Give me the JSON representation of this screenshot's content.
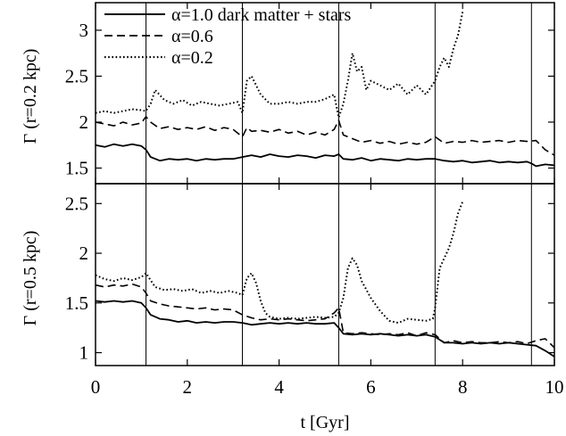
{
  "chart_data": [
    {
      "type": "line",
      "panel": "top",
      "ylabel": "Γ (r=0.2 kpc)",
      "xlim": [
        0,
        10
      ],
      "ylim": [
        1.33,
        3.3
      ],
      "yticks": [
        1.5,
        2,
        2.5,
        3
      ],
      "ytick_labels": [
        "1.5",
        "2",
        "2.5",
        "3"
      ],
      "vlines": [
        1.1,
        3.2,
        5.3,
        7.4,
        9.5
      ],
      "legend": {
        "placement": "top-left"
      },
      "series": [
        {
          "name": "α=1.0  dark matter + stars",
          "style": "solid",
          "x": [
            0,
            0.2,
            0.4,
            0.6,
            0.8,
            1.0,
            1.1,
            1.2,
            1.4,
            1.6,
            1.8,
            2.0,
            2.2,
            2.4,
            2.6,
            2.8,
            3.0,
            3.2,
            3.4,
            3.6,
            3.8,
            4.0,
            4.2,
            4.4,
            4.6,
            4.8,
            5.0,
            5.2,
            5.3,
            5.4,
            5.6,
            5.8,
            6.0,
            6.2,
            6.4,
            6.6,
            6.8,
            7.0,
            7.2,
            7.4,
            7.6,
            7.8,
            8.0,
            8.2,
            8.4,
            8.6,
            8.8,
            9.0,
            9.2,
            9.4,
            9.5,
            9.6,
            9.8,
            10.0
          ],
          "y": [
            1.75,
            1.73,
            1.76,
            1.74,
            1.76,
            1.74,
            1.7,
            1.62,
            1.58,
            1.6,
            1.59,
            1.6,
            1.58,
            1.6,
            1.59,
            1.6,
            1.6,
            1.62,
            1.64,
            1.62,
            1.65,
            1.63,
            1.62,
            1.64,
            1.63,
            1.61,
            1.64,
            1.63,
            1.65,
            1.6,
            1.59,
            1.61,
            1.58,
            1.6,
            1.59,
            1.58,
            1.6,
            1.59,
            1.6,
            1.6,
            1.58,
            1.57,
            1.58,
            1.56,
            1.57,
            1.58,
            1.56,
            1.57,
            1.56,
            1.57,
            1.55,
            1.52,
            1.54,
            1.53
          ]
        },
        {
          "name": "α=0.6",
          "style": "dashed",
          "x": [
            0,
            0.2,
            0.4,
            0.6,
            0.8,
            1.0,
            1.1,
            1.2,
            1.4,
            1.6,
            1.8,
            2.0,
            2.2,
            2.4,
            2.6,
            2.8,
            3.0,
            3.2,
            3.3,
            3.4,
            3.6,
            3.8,
            4.0,
            4.2,
            4.4,
            4.6,
            4.8,
            5.0,
            5.2,
            5.3,
            5.4,
            5.6,
            5.8,
            6.0,
            6.2,
            6.4,
            6.6,
            6.8,
            7.0,
            7.2,
            7.4,
            7.6,
            7.8,
            8.0,
            8.2,
            8.4,
            8.6,
            8.8,
            9.0,
            9.2,
            9.4,
            9.6,
            9.8,
            10.0
          ],
          "y": [
            2.0,
            1.98,
            1.96,
            2.0,
            1.97,
            1.99,
            2.06,
            2.0,
            1.93,
            1.95,
            1.92,
            1.94,
            1.92,
            1.95,
            1.91,
            1.94,
            1.92,
            1.84,
            1.94,
            1.9,
            1.91,
            1.89,
            1.92,
            1.88,
            1.9,
            1.86,
            1.89,
            1.86,
            1.92,
            2.02,
            1.86,
            1.82,
            1.78,
            1.8,
            1.77,
            1.79,
            1.76,
            1.78,
            1.76,
            1.78,
            1.84,
            1.77,
            1.79,
            1.78,
            1.8,
            1.78,
            1.79,
            1.8,
            1.78,
            1.8,
            1.79,
            1.8,
            1.7,
            1.64
          ]
        },
        {
          "name": "α=0.2",
          "style": "dotted",
          "x": [
            0,
            0.2,
            0.4,
            0.6,
            0.8,
            1.0,
            1.1,
            1.2,
            1.3,
            1.5,
            1.7,
            1.9,
            2.1,
            2.3,
            2.5,
            2.7,
            2.9,
            3.1,
            3.2,
            3.3,
            3.4,
            3.6,
            3.8,
            4.0,
            4.2,
            4.4,
            4.6,
            4.8,
            5.0,
            5.2,
            5.3,
            5.4,
            5.5,
            5.6,
            5.7,
            5.8,
            5.9,
            6.0,
            6.2,
            6.4,
            6.6,
            6.8,
            7.0,
            7.2,
            7.4,
            7.5,
            7.6,
            7.7,
            7.8,
            7.9,
            8.0
          ],
          "y": [
            2.1,
            2.12,
            2.1,
            2.12,
            2.14,
            2.13,
            2.12,
            2.2,
            2.35,
            2.24,
            2.2,
            2.24,
            2.18,
            2.22,
            2.2,
            2.18,
            2.2,
            2.22,
            2.1,
            2.45,
            2.5,
            2.3,
            2.2,
            2.2,
            2.22,
            2.2,
            2.22,
            2.22,
            2.25,
            2.3,
            2.05,
            2.2,
            2.45,
            2.75,
            2.55,
            2.6,
            2.35,
            2.45,
            2.4,
            2.35,
            2.42,
            2.3,
            2.4,
            2.3,
            2.45,
            2.6,
            2.7,
            2.6,
            2.8,
            2.95,
            3.2
          ]
        }
      ]
    },
    {
      "type": "line",
      "panel": "bottom",
      "xlabel": "t [Gyr]",
      "ylabel": "Γ (r=0.5 kpc)",
      "xlim": [
        0,
        10
      ],
      "ylim": [
        0.87,
        2.7
      ],
      "xticks": [
        0,
        2,
        4,
        6,
        8,
        10
      ],
      "xtick_labels": [
        "0",
        "2",
        "4",
        "6",
        "8",
        "10"
      ],
      "yticks": [
        1,
        1.5,
        2,
        2.5
      ],
      "ytick_labels": [
        "1",
        "1.5",
        "2",
        "2.5"
      ],
      "vlines": [
        1.1,
        3.2,
        5.3,
        7.4,
        9.5
      ],
      "series": [
        {
          "name": "α=1.0  dark matter + stars",
          "style": "solid",
          "x": [
            0,
            0.2,
            0.4,
            0.6,
            0.8,
            1.0,
            1.1,
            1.2,
            1.4,
            1.6,
            1.8,
            2.0,
            2.2,
            2.4,
            2.6,
            2.8,
            3.0,
            3.2,
            3.4,
            3.6,
            3.8,
            4.0,
            4.2,
            4.4,
            4.6,
            4.8,
            5.0,
            5.2,
            5.3,
            5.4,
            5.6,
            5.8,
            6.0,
            6.2,
            6.4,
            6.6,
            6.8,
            7.0,
            7.2,
            7.4,
            7.6,
            7.8,
            8.0,
            8.2,
            8.4,
            8.6,
            8.8,
            9.0,
            9.2,
            9.4,
            9.6,
            9.8,
            10.0
          ],
          "y": [
            1.52,
            1.51,
            1.52,
            1.51,
            1.52,
            1.5,
            1.45,
            1.38,
            1.34,
            1.33,
            1.31,
            1.32,
            1.3,
            1.31,
            1.3,
            1.31,
            1.31,
            1.3,
            1.28,
            1.29,
            1.3,
            1.29,
            1.3,
            1.29,
            1.3,
            1.29,
            1.29,
            1.3,
            1.25,
            1.19,
            1.18,
            1.19,
            1.18,
            1.19,
            1.18,
            1.17,
            1.18,
            1.17,
            1.18,
            1.16,
            1.1,
            1.1,
            1.09,
            1.1,
            1.09,
            1.1,
            1.09,
            1.1,
            1.09,
            1.08,
            1.07,
            1.02,
            0.96
          ]
        },
        {
          "name": "α=0.6",
          "style": "dashed",
          "x": [
            0,
            0.2,
            0.4,
            0.6,
            0.8,
            1.0,
            1.1,
            1.2,
            1.4,
            1.6,
            1.8,
            2.0,
            2.2,
            2.4,
            2.6,
            2.8,
            3.0,
            3.2,
            3.4,
            3.6,
            3.8,
            4.0,
            4.2,
            4.4,
            4.6,
            4.8,
            5.0,
            5.2,
            5.3,
            5.4,
            5.6,
            5.8,
            6.0,
            6.2,
            6.4,
            6.6,
            6.8,
            7.0,
            7.2,
            7.4,
            7.6,
            7.8,
            8.0,
            8.2,
            8.4,
            8.6,
            8.8,
            9.0,
            9.2,
            9.4,
            9.6,
            9.8,
            10.0
          ],
          "y": [
            1.68,
            1.66,
            1.68,
            1.67,
            1.69,
            1.66,
            1.6,
            1.52,
            1.49,
            1.47,
            1.46,
            1.45,
            1.44,
            1.45,
            1.43,
            1.44,
            1.43,
            1.38,
            1.35,
            1.33,
            1.34,
            1.33,
            1.34,
            1.33,
            1.32,
            1.33,
            1.34,
            1.4,
            1.45,
            1.2,
            1.19,
            1.2,
            1.19,
            1.18,
            1.19,
            1.18,
            1.2,
            1.17,
            1.2,
            1.18,
            1.1,
            1.12,
            1.1,
            1.11,
            1.1,
            1.1,
            1.11,
            1.1,
            1.11,
            1.09,
            1.12,
            1.14,
            1.05
          ]
        },
        {
          "name": "α=0.2",
          "style": "dotted",
          "x": [
            0,
            0.2,
            0.4,
            0.6,
            0.8,
            1.0,
            1.1,
            1.3,
            1.5,
            1.7,
            1.9,
            2.1,
            2.3,
            2.5,
            2.7,
            2.9,
            3.1,
            3.2,
            3.3,
            3.4,
            3.5,
            3.6,
            3.7,
            3.8,
            4.0,
            4.2,
            4.4,
            4.6,
            4.8,
            5.0,
            5.2,
            5.3,
            5.4,
            5.5,
            5.6,
            5.7,
            5.8,
            6.0,
            6.2,
            6.4,
            6.6,
            6.8,
            7.0,
            7.2,
            7.35,
            7.4,
            7.5,
            7.6,
            7.7,
            7.8,
            7.9,
            8.0
          ],
          "y": [
            1.78,
            1.74,
            1.72,
            1.75,
            1.73,
            1.76,
            1.8,
            1.66,
            1.63,
            1.64,
            1.62,
            1.64,
            1.6,
            1.62,
            1.6,
            1.62,
            1.6,
            1.58,
            1.75,
            1.8,
            1.7,
            1.52,
            1.4,
            1.36,
            1.34,
            1.35,
            1.34,
            1.35,
            1.36,
            1.35,
            1.36,
            1.4,
            1.55,
            1.85,
            1.95,
            1.88,
            1.72,
            1.55,
            1.42,
            1.32,
            1.3,
            1.34,
            1.33,
            1.32,
            1.34,
            1.45,
            1.85,
            1.95,
            2.05,
            2.2,
            2.4,
            2.52
          ]
        }
      ]
    }
  ]
}
